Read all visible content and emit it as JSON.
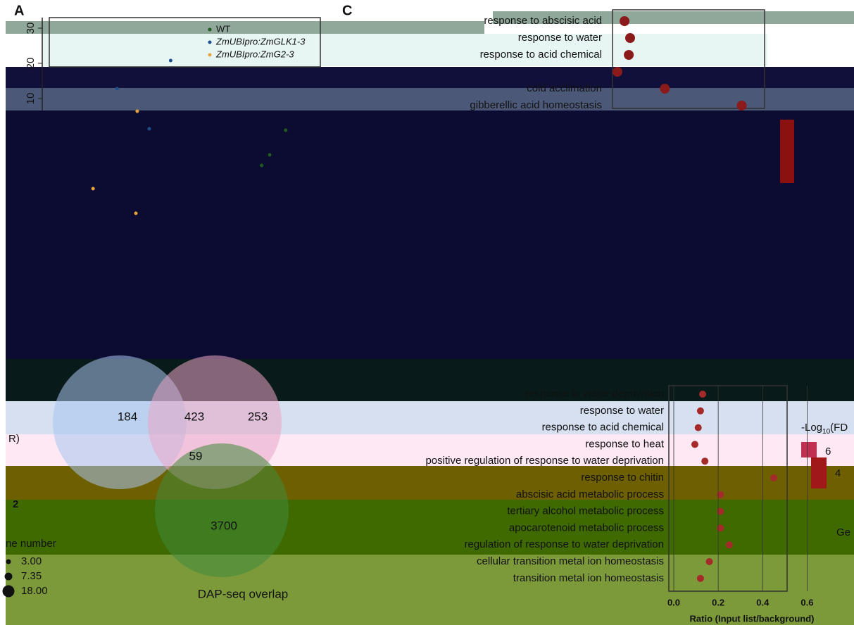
{
  "panel_labels": [
    "A",
    "C"
  ],
  "chart_data": [
    {
      "type": "scatter",
      "ylim": [
        -45,
        33
      ],
      "yticks": [
        10,
        20,
        30
      ],
      "xlim": [
        0,
        100
      ],
      "series": [
        {
          "name": "WT",
          "color": "#1f5a1f",
          "x": [
            91,
            85,
            82
          ],
          "values": [
            1,
            -6,
            -9
          ]
        },
        {
          "name": "ZmUBIpro:ZmGLK1-3",
          "color": "#1f4e8c",
          "x": [
            48,
            28,
            40
          ],
          "values": [
            20.8,
            12.8,
            1.4
          ]
        },
        {
          "name": "ZmUBIpro:ZmG2-3",
          "color": "#e8a33c",
          "x": [
            35.5,
            19,
            35
          ],
          "values": [
            6.4,
            -15.6,
            -22.6
          ]
        }
      ]
    },
    {
      "type": "venn",
      "title": "DAP-seq overlap",
      "values": [
        184,
        423,
        253,
        59,
        3700
      ]
    },
    {
      "type": "dot",
      "xlim": [
        0,
        1.1
      ],
      "color": "#8b1a1a",
      "categories": [
        "response to abscisic acid",
        "response to water",
        "response to acid chemical",
        null,
        "cold acclimation",
        "gibberellic acid homeostasis"
      ],
      "values": [
        0.054,
        0.079,
        0.073,
        0.022,
        0.235,
        0.58
      ]
    },
    {
      "type": "dot",
      "xlim": [
        0,
        0.7
      ],
      "color": "#a52a2a",
      "xticks": [
        {
          "value": 0,
          "label": "0.0"
        },
        0.2,
        0.4,
        0.6
      ],
      "xlabel": "Ratio (Input list/background)",
      "categories": [
        "response to water deprivation",
        "response to water",
        "response to acid chemical",
        "response to heat",
        "positive regulation of response to water deprivation",
        "response to chitin",
        "abscisic acid metabolic process",
        "tertiary alcohol metabolic process",
        "apocarotenoid metabolic process",
        "regulation of response to water deprivation",
        "cellular transition metal ion homeostasis",
        "transition metal ion homeostasis"
      ],
      "values": [
        0.13,
        0.12,
        0.11,
        0.095,
        0.14,
        0.45,
        0.21,
        0.21,
        0.21,
        0.25,
        0.16,
        0.12
      ]
    }
  ],
  "size_legend": {
    "title": "ne number",
    "sizes": [
      {
        "value": 3,
        "label": "3.00"
      },
      7.35,
      {
        "value": 18,
        "label": "18.00"
      }
    ]
  },
  "fdr_legend": {
    "title_parts": [
      "-Log",
      "10",
      "(FD"
    ],
    "ticks": [
      6,
      4
    ]
  },
  "fragments": [
    "R)",
    "2",
    "Ge"
  ]
}
